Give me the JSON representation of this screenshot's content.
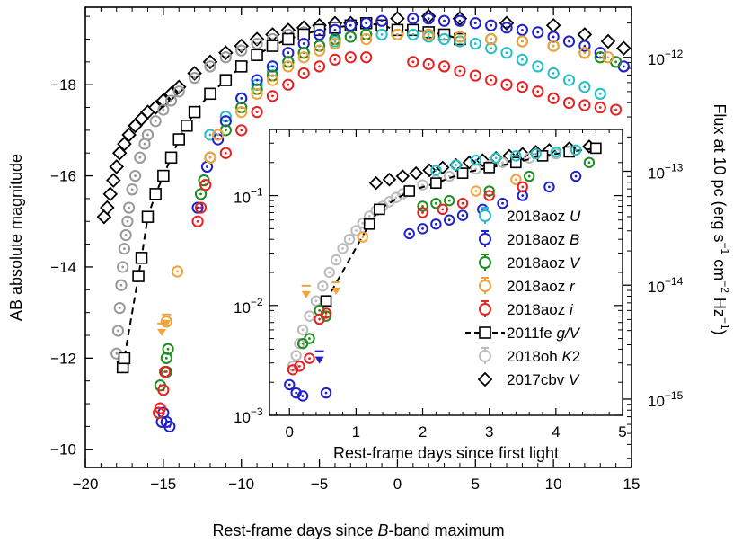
{
  "chart_data": [
    {
      "type": "scatter",
      "xlabel_parts": [
        "Rest-frame days since ",
        "B",
        "-band maximum"
      ],
      "ylabel": "AB absolute magnitude",
      "y2label_parts": [
        "Flux at 10 pc (erg s",
        "−1",
        " cm",
        "−2",
        " Hz",
        "−1",
        ")"
      ],
      "xlim": [
        -20,
        15
      ],
      "ylim": [
        -9.6,
        -19.7
      ],
      "y_inverted": true,
      "xticks": [
        {
          "v": -20,
          "label": "−20"
        },
        {
          "v": -15,
          "label": "−15"
        },
        {
          "v": -10,
          "label": "−10"
        },
        {
          "v": -5,
          "label": "−5"
        },
        {
          "v": 0,
          "label": "0"
        },
        {
          "v": 5,
          "label": "5"
        },
        {
          "v": 10,
          "label": "10"
        },
        {
          "v": 15,
          "label": "15"
        }
      ],
      "yticks": [
        {
          "v": -10,
          "label": "−10"
        },
        {
          "v": -12,
          "label": "−12"
        },
        {
          "v": -14,
          "label": "−14"
        },
        {
          "v": -16,
          "label": "−16"
        },
        {
          "v": -18,
          "label": "−18"
        }
      ],
      "y2_log_flux_ticks": [
        {
          "v": -12,
          "mant": "10",
          "exp": "−12"
        },
        {
          "v": -13,
          "mant": "10",
          "exp": "−13"
        },
        {
          "v": -14,
          "mant": "10",
          "exp": "−14"
        },
        {
          "v": -15,
          "mant": "10",
          "exp": "−15"
        }
      ],
      "series": [
        {
          "name": "2017cbv V",
          "marker": "diamond",
          "color": "#000000",
          "x": [
            -18.8,
            -18.6,
            -18.4,
            -18.2,
            -18.0,
            -17.8,
            -17.5,
            -17.2,
            -16.8,
            -16.4,
            -16.0,
            -15.5,
            -15.0,
            -14.5,
            -14.0,
            -13.0,
            -12.0,
            -11.0,
            -10.0,
            -9.0,
            -8.0,
            -7.0,
            -6.0,
            -5.0,
            -4.0,
            -3.0,
            0.0,
            2.0,
            4.0,
            7.0,
            10.0,
            12.0,
            13.5,
            14.5
          ],
          "y": [
            -15.1,
            -15.3,
            -15.6,
            -15.9,
            -16.2,
            -16.5,
            -16.7,
            -16.9,
            -17.1,
            -17.25,
            -17.4,
            -17.5,
            -17.65,
            -17.8,
            -17.95,
            -18.25,
            -18.5,
            -18.7,
            -18.85,
            -19.0,
            -19.1,
            -19.2,
            -19.25,
            -19.3,
            -19.35,
            -19.35,
            -19.45,
            -19.5,
            -19.45,
            -19.35,
            -19.3,
            -19.1,
            -18.95,
            -18.8
          ]
        },
        {
          "name": "2018oh K2",
          "marker": "circle",
          "color": "#999999",
          "x": [
            -18.0,
            -17.9,
            -17.8,
            -17.7,
            -17.6,
            -17.5,
            -17.4,
            -17.3,
            -17.2,
            -17.0,
            -16.8,
            -16.5,
            -16.2,
            -16.0,
            -15.5,
            -15.0,
            -14.5,
            -14.0,
            -13.0,
            -12.0,
            -11.0,
            -10.0,
            -9.0,
            -8.0,
            -7.0,
            -6.0,
            -5.0
          ],
          "y": [
            -12.1,
            -12.6,
            -13.1,
            -13.6,
            -14.0,
            -14.4,
            -14.7,
            -15.0,
            -15.3,
            -15.7,
            -16.0,
            -16.4,
            -16.7,
            -16.9,
            -17.2,
            -17.45,
            -17.65,
            -17.85,
            -18.15,
            -18.4,
            -18.6,
            -18.75,
            -18.9,
            -19.0,
            -19.1,
            -19.15,
            -19.2
          ]
        },
        {
          "name": "2011fe g/V",
          "marker": "square",
          "color": "#000000",
          "dashed_line": true,
          "x": [
            -17.6,
            -17.5,
            -16.6,
            -16.4,
            -16.0,
            -15.5,
            -15.0,
            -14.5,
            -14.0,
            -13.5,
            -13.0,
            -12.0,
            -11.0,
            -10.0,
            -9.0,
            -8.0,
            -7.0,
            -6.0,
            -5.0,
            -4.0,
            -3.0,
            -2.0,
            -1.0,
            0.0,
            1.0,
            2.0,
            3.0,
            4.0
          ],
          "y": [
            -11.8,
            -12.0,
            -13.8,
            -14.2,
            -15.1,
            -15.6,
            -16.0,
            -16.4,
            -16.8,
            -17.1,
            -17.4,
            -17.8,
            -18.1,
            -18.4,
            -18.65,
            -18.85,
            -19.0,
            -19.1,
            -19.2,
            -19.25,
            -19.3,
            -19.35,
            -19.3,
            -19.2,
            -19.2,
            -19.15,
            -19.1,
            -19.0
          ]
        },
        {
          "name": "2018aoz U",
          "marker": "circle",
          "color": "#26C0C4",
          "x": [
            -12.0,
            -11.0,
            -10.0,
            -9.0,
            -8.0,
            -7.0,
            -6.0,
            -5.0,
            -4.0,
            -3.0,
            -2.0,
            -1.0,
            0.0,
            1.0,
            2.0,
            3.0,
            4.0,
            5.0,
            6.0,
            7.0,
            8.0,
            9.0,
            10.0,
            11.0,
            12.0,
            13.0
          ],
          "y": [
            -16.9,
            -17.3,
            -17.7,
            -18.0,
            -18.3,
            -18.5,
            -18.7,
            -18.85,
            -18.95,
            -19.05,
            -19.1,
            -19.1,
            -19.1,
            -19.1,
            -19.05,
            -19.0,
            -18.95,
            -18.9,
            -18.8,
            -18.7,
            -18.55,
            -18.4,
            -18.25,
            -18.1,
            -17.95,
            -17.8
          ]
        },
        {
          "name": "2018aoz B",
          "marker": "circle",
          "color": "#2121CC",
          "x": [
            -15.1,
            -15.0,
            -14.8,
            -14.6,
            -12.8,
            -12.2,
            -11.5,
            -11.0,
            -10.0,
            -9.0,
            -8.0,
            -7.0,
            -6.0,
            -5.0,
            -4.0,
            -3.0,
            -2.0,
            -1.0,
            1.0,
            2.0,
            3.0,
            4.0,
            5.0,
            6.0,
            7.0,
            8.0,
            9.0,
            10.0,
            11.0,
            12.0,
            13.0,
            14.5
          ],
          "y": [
            -10.6,
            -10.8,
            -10.6,
            -10.5,
            -15.3,
            -16.2,
            -16.8,
            -17.2,
            -17.7,
            -18.1,
            -18.4,
            -18.7,
            -18.9,
            -19.1,
            -19.2,
            -19.3,
            -19.35,
            -19.4,
            -19.45,
            -19.45,
            -19.4,
            -19.4,
            -19.35,
            -19.3,
            -19.25,
            -19.2,
            -19.15,
            -19.05,
            -18.95,
            -18.85,
            -18.7,
            -18.4
          ]
        },
        {
          "name": "2018aoz V",
          "marker": "circle",
          "color": "#1E8C1E",
          "x": [
            -15.3,
            -15.2,
            -14.8,
            -14.8,
            -14.7,
            -12.6,
            -12.4,
            -12.0,
            -11.0,
            -10.0,
            -9.0,
            -8.0,
            -7.0,
            -6.0,
            -5.0,
            -4.0,
            -3.0,
            -2.0,
            0.0,
            2.0,
            4.0,
            6.0,
            8.0,
            10.0,
            12.0,
            13.0,
            14.0
          ],
          "y": [
            -10.8,
            -11.4,
            -11.7,
            -12.0,
            -12.2,
            -15.6,
            -15.9,
            -16.4,
            -17.0,
            -17.5,
            -17.9,
            -18.2,
            -18.5,
            -18.7,
            -18.85,
            -19.0,
            -19.05,
            -19.1,
            -19.1,
            -19.1,
            -19.05,
            -19.0,
            -18.95,
            -18.85,
            -18.7,
            -18.6,
            -18.5
          ]
        },
        {
          "name": "2018aoz r",
          "marker": "circle",
          "color": "#F2A23A",
          "upper_limit_x": [
            -15.1,
            -14.8
          ],
          "upper_limit_y": [
            -12.6,
            -12.8
          ],
          "x": [
            -14.1,
            -14.8,
            -12.0,
            -11.5,
            -10.0,
            -9.0,
            -8.0,
            -7.0,
            -6.0,
            -5.0,
            -4.0,
            -2.0,
            0.0,
            2.0,
            4.0,
            6.0,
            8.0,
            10.0,
            12.0,
            13.5
          ],
          "y": [
            -13.9,
            -12.8,
            -16.4,
            -16.9,
            -17.4,
            -17.8,
            -18.1,
            -18.4,
            -18.6,
            -18.75,
            -18.9,
            -19.0,
            -19.1,
            -19.1,
            -19.05,
            -19.0,
            -18.95,
            -18.85,
            -18.7,
            -18.6
          ]
        },
        {
          "name": "2018aoz i",
          "marker": "circle",
          "color": "#E82222",
          "x": [
            -15.3,
            -15.2,
            -15.0,
            -14.9,
            -12.8,
            -12.6,
            -12.3,
            -11.0,
            -10.0,
            -9.0,
            -8.0,
            -7.0,
            -6.0,
            -5.0,
            -4.0,
            -3.0,
            -2.0,
            1.0,
            2.0,
            3.0,
            4.0,
            5.0,
            6.0,
            7.0,
            8.0,
            9.0,
            10.0,
            11.0,
            12.0,
            13.0,
            14.0
          ],
          "y": [
            -10.8,
            -10.9,
            -11.3,
            -11.7,
            -15.0,
            -15.3,
            -15.8,
            -16.5,
            -17.0,
            -17.4,
            -17.75,
            -18.0,
            -18.25,
            -18.4,
            -18.55,
            -18.6,
            -18.6,
            -18.5,
            -18.45,
            -18.4,
            -18.3,
            -18.2,
            -18.1,
            -18.0,
            -17.95,
            -17.85,
            -17.7,
            -17.6,
            -17.55,
            -17.5,
            -17.45
          ]
        }
      ]
    },
    {
      "type": "scatter",
      "role": "inset",
      "xlabel": "Rest-frame days since first light",
      "ylabel": "",
      "xlim": [
        -0.3,
        5
      ],
      "ylim_log": [
        0.001,
        0.4
      ],
      "y_log_scale": true,
      "xticks": [
        {
          "v": 0,
          "label": "0"
        },
        {
          "v": 1,
          "label": "1"
        },
        {
          "v": 2,
          "label": "2"
        },
        {
          "v": 3,
          "label": "3"
        },
        {
          "v": 4,
          "label": "4"
        },
        {
          "v": 5,
          "label": "5"
        }
      ],
      "yticks": [
        {
          "v": 0.001,
          "mant": "10",
          "exp": "−3"
        },
        {
          "v": 0.01,
          "mant": "10",
          "exp": "−2"
        },
        {
          "v": 0.1,
          "mant": "10",
          "exp": "−1"
        }
      ],
      "series": [
        {
          "name": "2017cbv V",
          "marker": "diamond",
          "color": "#000000",
          "x": [
            1.3,
            1.5,
            1.7,
            1.9,
            2.1,
            2.3,
            2.5,
            2.7,
            2.9,
            3.1,
            3.3,
            3.5,
            3.7,
            3.9,
            4.2,
            4.5
          ],
          "y": [
            0.13,
            0.14,
            0.15,
            0.16,
            0.17,
            0.18,
            0.19,
            0.2,
            0.21,
            0.22,
            0.23,
            0.24,
            0.25,
            0.26,
            0.27,
            0.28
          ]
        },
        {
          "name": "2018oh K2",
          "marker": "circle",
          "color": "#BBBBBB",
          "x": [
            0.05,
            0.1,
            0.15,
            0.2,
            0.3,
            0.4,
            0.5,
            0.6,
            0.7,
            0.8,
            0.9,
            1.0,
            1.1,
            1.2,
            1.3,
            1.4,
            1.5,
            1.6,
            1.7,
            1.8,
            2.0,
            2.2,
            2.4,
            2.6,
            2.8,
            3.0,
            3.2,
            3.4,
            3.6,
            3.8,
            4.0
          ],
          "y": [
            0.0028,
            0.0035,
            0.0045,
            0.006,
            0.008,
            0.011,
            0.015,
            0.02,
            0.026,
            0.033,
            0.04,
            0.048,
            0.056,
            0.065,
            0.073,
            0.08,
            0.088,
            0.096,
            0.104,
            0.112,
            0.125,
            0.138,
            0.15,
            0.162,
            0.175,
            0.188,
            0.2,
            0.21,
            0.22,
            0.23,
            0.24
          ]
        },
        {
          "name": "2011fe g/V",
          "marker": "square",
          "color": "#000000",
          "dashed_line": true,
          "x": [
            0.55,
            1.2,
            1.35,
            1.8,
            2.2,
            2.6,
            3.0,
            3.4,
            3.8,
            4.2,
            4.6
          ],
          "y": [
            0.011,
            0.055,
            0.075,
            0.11,
            0.13,
            0.16,
            0.18,
            0.2,
            0.23,
            0.25,
            0.27
          ]
        },
        {
          "name": "2018aoz U",
          "marker": "circle",
          "color": "#26C0C4",
          "x": [
            2.2,
            2.5,
            2.8,
            3.1,
            3.4,
            3.7,
            4.0,
            4.3
          ],
          "y": [
            0.17,
            0.19,
            0.21,
            0.22,
            0.23,
            0.24,
            0.25,
            0.26
          ]
        },
        {
          "name": "2018aoz B",
          "marker": "circle",
          "color": "#2121CC",
          "upper_limit_x": [
            0.45
          ],
          "upper_limit_y": [
            0.0033
          ],
          "x": [
            0.0,
            0.1,
            0.2,
            0.55,
            1.8,
            2.0,
            2.2,
            2.4,
            2.6,
            2.9,
            3.2,
            3.5,
            3.9,
            4.3
          ],
          "y": [
            0.0019,
            0.0016,
            0.0015,
            0.0016,
            0.045,
            0.05,
            0.055,
            0.06,
            0.066,
            0.075,
            0.085,
            0.1,
            0.12,
            0.15
          ]
        },
        {
          "name": "2018aoz V",
          "marker": "circle",
          "color": "#1E8C1E",
          "x": [
            0.2,
            0.3,
            0.45,
            0.55,
            2.0,
            2.2,
            2.4,
            3.0,
            3.6,
            4.5
          ],
          "y": [
            0.0045,
            0.005,
            0.009,
            0.008,
            0.08,
            0.085,
            0.09,
            0.11,
            0.15,
            0.2
          ]
        },
        {
          "name": "2018aoz r",
          "marker": "circle",
          "color": "#F2A23A",
          "upper_limit_x": [
            0.25,
            0.7
          ],
          "upper_limit_y": [
            0.013,
            0.014
          ],
          "x": [
            1.1,
            2.8,
            3.4
          ],
          "y": [
            0.042,
            0.11,
            0.14
          ]
        },
        {
          "name": "2018aoz i",
          "marker": "circle",
          "color": "#E82222",
          "x": [
            0.05,
            0.15,
            0.3,
            0.45,
            0.55,
            2.0,
            2.3,
            2.6,
            3.0,
            3.5
          ],
          "y": [
            0.0026,
            0.0028,
            0.0033,
            0.0075,
            0.0085,
            0.07,
            0.075,
            0.085,
            0.1,
            0.12
          ]
        }
      ]
    }
  ],
  "legend": [
    {
      "name_main": "2018aoz ",
      "name_ital": "U",
      "color": "#26C0C4",
      "marker": "circle"
    },
    {
      "name_main": "2018aoz ",
      "name_ital": "B",
      "color": "#2121CC",
      "marker": "circle"
    },
    {
      "name_main": "2018aoz ",
      "name_ital": "V",
      "color": "#1E8C1E",
      "marker": "circle"
    },
    {
      "name_main": "2018aoz ",
      "name_ital": "r",
      "color": "#F2A23A",
      "marker": "circle"
    },
    {
      "name_main": "2018aoz ",
      "name_ital": "i",
      "color": "#E82222",
      "marker": "circle"
    },
    {
      "name_main": "2011fe ",
      "name_ital": "g/V",
      "color": "#000000",
      "marker": "square-dashed"
    },
    {
      "name_main": "2018oh ",
      "name_ital": "K",
      "name_tail": "2",
      "color": "#BBBBBB",
      "marker": "circle-grey"
    },
    {
      "name_main": "2017cbv ",
      "name_ital": "V",
      "color": "#000000",
      "marker": "diamond"
    }
  ]
}
